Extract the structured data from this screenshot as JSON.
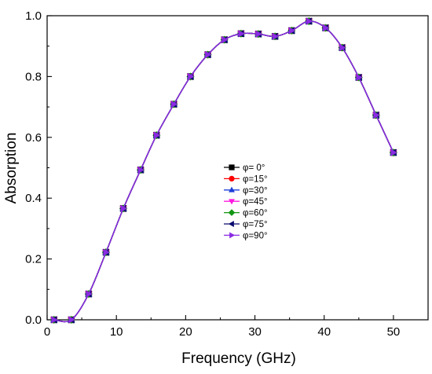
{
  "chart_data": {
    "type": "line",
    "title": "",
    "xlabel": "Frequency (GHz)",
    "ylabel": "Absorption",
    "xlim": [
      0,
      55
    ],
    "ylim": [
      0,
      1.0
    ],
    "xticks": [
      0,
      10,
      20,
      30,
      40,
      50
    ],
    "yticks": [
      0.0,
      0.2,
      0.4,
      0.6,
      0.8,
      1.0
    ],
    "x_tick_labels": [
      "0",
      "10",
      "20",
      "30",
      "40",
      "50"
    ],
    "y_tick_labels": [
      "0.0",
      "0.2",
      "0.4",
      "0.6",
      "0.8",
      "1.0"
    ],
    "grid": false,
    "legend_position": "center",
    "x": [
      1,
      3.5,
      6,
      8.5,
      11,
      13.5,
      15.8,
      18.3,
      20.7,
      23.2,
      25.6,
      28,
      30.5,
      32.9,
      35.3,
      37.8,
      40.2,
      42.6,
      45,
      47.5,
      50
    ],
    "series": [
      {
        "name": "φ= 0°",
        "color": "#000000",
        "marker": "square",
        "values": [
          0,
          0,
          0.085,
          0.222,
          0.366,
          0.493,
          0.607,
          0.709,
          0.8,
          0.872,
          0.921,
          0.941,
          0.94,
          0.932,
          0.951,
          0.982,
          0.96,
          0.895,
          0.797,
          0.673,
          0.55
        ]
      },
      {
        "name": "φ=15°",
        "color": "#ff0000",
        "marker": "circle",
        "values": [
          0,
          0,
          0.085,
          0.222,
          0.366,
          0.493,
          0.607,
          0.709,
          0.8,
          0.872,
          0.921,
          0.941,
          0.94,
          0.932,
          0.951,
          0.982,
          0.96,
          0.895,
          0.797,
          0.673,
          0.55
        ]
      },
      {
        "name": "φ=30°",
        "color": "#1f3fd8",
        "marker": "triangle-up",
        "values": [
          0,
          0,
          0.085,
          0.222,
          0.366,
          0.493,
          0.607,
          0.709,
          0.8,
          0.872,
          0.921,
          0.941,
          0.94,
          0.932,
          0.951,
          0.982,
          0.96,
          0.895,
          0.797,
          0.673,
          0.55
        ]
      },
      {
        "name": "φ=45°",
        "color": "#ff19e0",
        "marker": "triangle-down",
        "values": [
          0,
          0,
          0.085,
          0.222,
          0.366,
          0.493,
          0.607,
          0.709,
          0.8,
          0.872,
          0.921,
          0.941,
          0.94,
          0.932,
          0.951,
          0.982,
          0.96,
          0.895,
          0.797,
          0.673,
          0.55
        ]
      },
      {
        "name": "φ=60°",
        "color": "#129612",
        "marker": "diamond",
        "values": [
          0,
          0,
          0.085,
          0.222,
          0.366,
          0.493,
          0.607,
          0.709,
          0.8,
          0.872,
          0.921,
          0.941,
          0.94,
          0.932,
          0.951,
          0.982,
          0.96,
          0.895,
          0.797,
          0.673,
          0.55
        ]
      },
      {
        "name": "φ=75°",
        "color": "#0a0a6e",
        "marker": "triangle-left",
        "values": [
          0,
          0,
          0.085,
          0.222,
          0.366,
          0.493,
          0.607,
          0.709,
          0.8,
          0.872,
          0.921,
          0.941,
          0.94,
          0.932,
          0.951,
          0.982,
          0.96,
          0.895,
          0.797,
          0.673,
          0.55
        ]
      },
      {
        "name": "φ=90°",
        "color": "#8a2be2",
        "marker": "triangle-right",
        "values": [
          0,
          0,
          0.085,
          0.222,
          0.366,
          0.493,
          0.607,
          0.709,
          0.8,
          0.872,
          0.921,
          0.941,
          0.94,
          0.932,
          0.951,
          0.982,
          0.96,
          0.895,
          0.797,
          0.673,
          0.55
        ]
      }
    ]
  }
}
